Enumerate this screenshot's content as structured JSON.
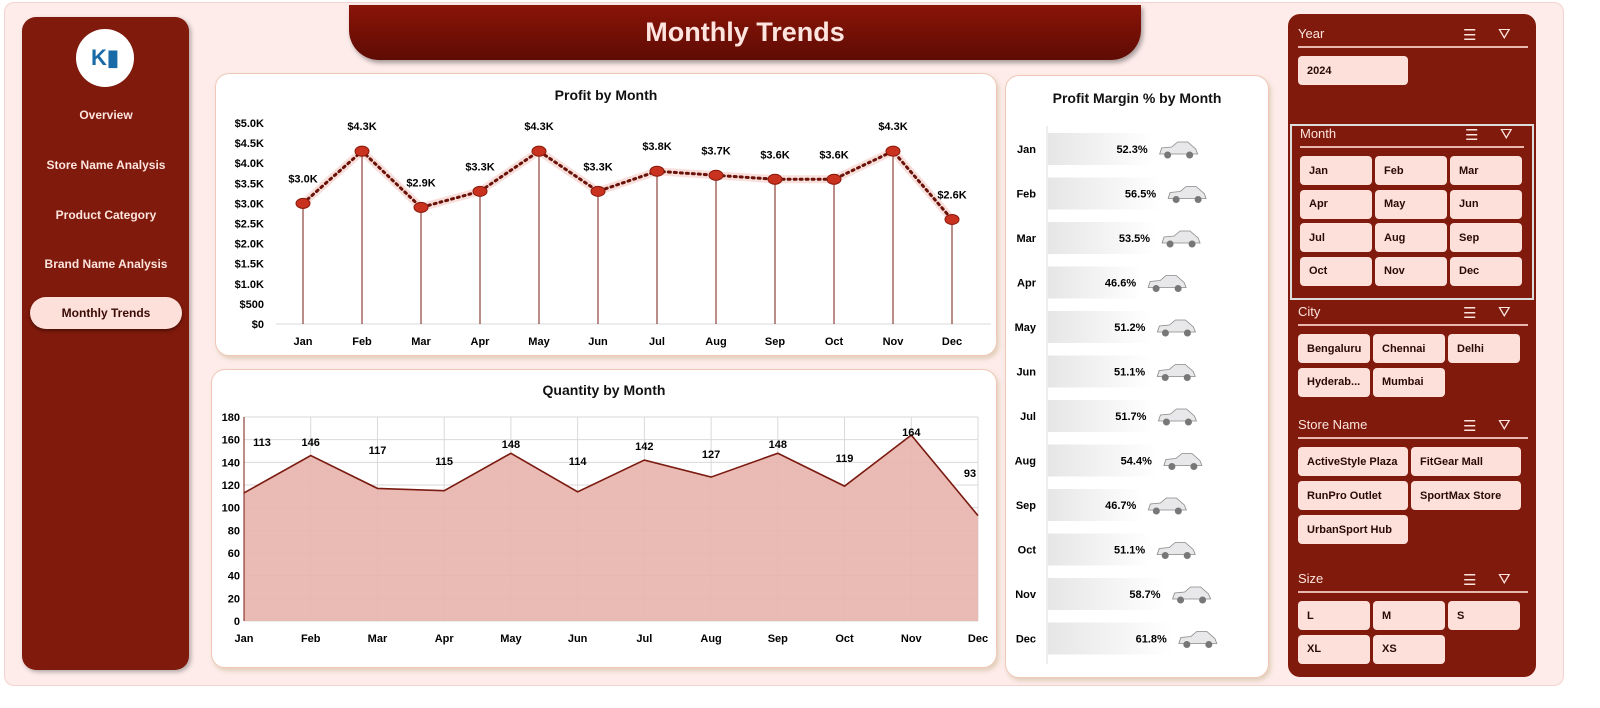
{
  "title": "Monthly Trends",
  "sidebar": {
    "items": [
      {
        "label": "Overview"
      },
      {
        "label": "Store Name Analysis"
      },
      {
        "label": "Product Category"
      },
      {
        "label": "Brand Name Analysis"
      },
      {
        "label": "Monthly Trends",
        "active": true
      }
    ]
  },
  "colors": {
    "primary": "#7f1a0c",
    "button": "#fde0da",
    "area": "#e8b4ac",
    "line": "#7a1a10"
  },
  "months": [
    "Jan",
    "Feb",
    "Mar",
    "Apr",
    "May",
    "Jun",
    "Jul",
    "Aug",
    "Sep",
    "Oct",
    "Nov",
    "Dec"
  ],
  "chart_data": [
    {
      "type": "line",
      "title": "Profit by Month",
      "categories": [
        "Jan",
        "Feb",
        "Mar",
        "Apr",
        "May",
        "Jun",
        "Jul",
        "Aug",
        "Sep",
        "Oct",
        "Nov",
        "Dec"
      ],
      "values": [
        3000,
        4300,
        2900,
        3300,
        4300,
        3300,
        3800,
        3700,
        3600,
        3600,
        4300,
        2600
      ],
      "labels": [
        "$3.0K",
        "$4.3K",
        "$2.9K",
        "$3.3K",
        "$4.3K",
        "$3.3K",
        "$3.8K",
        "$3.7K",
        "$3.6K",
        "$3.6K",
        "$4.3K",
        "$2.6K"
      ],
      "yticks": [
        "$0",
        "$500",
        "$1.0K",
        "$1.5K",
        "$2.0K",
        "$2.5K",
        "$3.0K",
        "$3.5K",
        "$4.0K",
        "$4.5K",
        "$5.0K"
      ],
      "ylim": [
        0,
        5000
      ],
      "grid": false
    },
    {
      "type": "area",
      "title": "Quantity by Month",
      "categories": [
        "Jan",
        "Feb",
        "Mar",
        "Apr",
        "May",
        "Jun",
        "Jul",
        "Aug",
        "Sep",
        "Oct",
        "Nov",
        "Dec"
      ],
      "values": [
        113,
        146,
        117,
        115,
        148,
        114,
        142,
        127,
        148,
        119,
        164,
        93
      ],
      "yticks": [
        "0",
        "20",
        "40",
        "60",
        "80",
        "100",
        "120",
        "140",
        "160",
        "180"
      ],
      "ylim": [
        0,
        180
      ],
      "grid": true
    },
    {
      "type": "bar",
      "title": "Profit Margin % by Month",
      "orientation": "horizontal",
      "categories": [
        "Jan",
        "Feb",
        "Mar",
        "Apr",
        "May",
        "Jun",
        "Jul",
        "Aug",
        "Sep",
        "Oct",
        "Nov",
        "Dec"
      ],
      "values": [
        52.3,
        56.5,
        53.5,
        46.6,
        51.2,
        51.1,
        51.7,
        54.4,
        46.7,
        51.1,
        58.7,
        61.8
      ],
      "labels": [
        "52.3%",
        "56.5%",
        "53.5%",
        "46.6%",
        "51.2%",
        "51.1%",
        "51.7%",
        "54.4%",
        "46.7%",
        "51.1%",
        "58.7%",
        "61.8%"
      ],
      "marker_icon": "car-icon"
    }
  ],
  "slicers": {
    "year": {
      "title": "Year",
      "items": [
        "2024"
      ]
    },
    "month": {
      "title": "Month",
      "items": [
        "Jan",
        "Feb",
        "Mar",
        "Apr",
        "May",
        "Jun",
        "Jul",
        "Aug",
        "Sep",
        "Oct",
        "Nov",
        "Dec"
      ]
    },
    "city": {
      "title": "City",
      "items": [
        "Bengaluru",
        "Chennai",
        "Delhi",
        "Hyderab...",
        "Mumbai"
      ]
    },
    "store": {
      "title": "Store Name",
      "items": [
        "ActiveStyle Plaza",
        "FitGear Mall",
        "RunPro Outlet",
        "SportMax Store",
        "UrbanSport Hub"
      ]
    },
    "size": {
      "title": "Size",
      "items": [
        "L",
        "M",
        "S",
        "XL",
        "XS"
      ]
    }
  }
}
